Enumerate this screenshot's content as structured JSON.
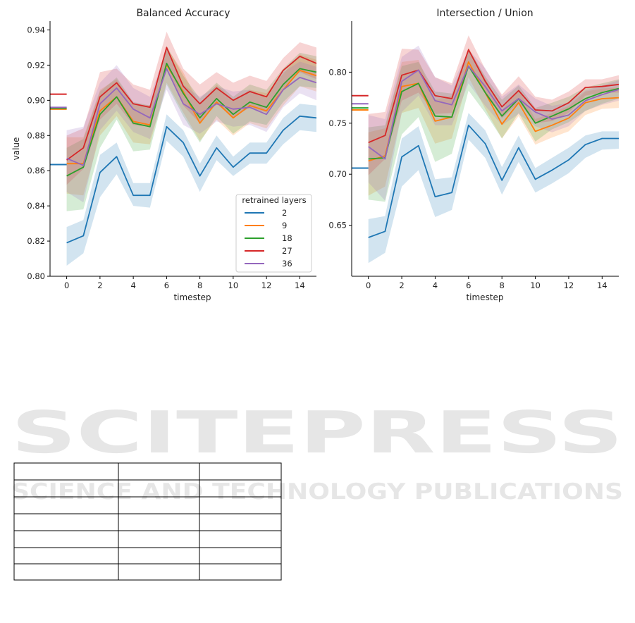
{
  "watermark": {
    "main": "SCITEPRESS",
    "sub": "SCIENCE AND TECHNOLOGY PUBLICATIONS"
  },
  "legend": {
    "title": "retrained layers",
    "entries": [
      {
        "label": "2",
        "color": "#1f77b4"
      },
      {
        "label": "9",
        "color": "#ff7f0e"
      },
      {
        "label": "18",
        "color": "#2ca02c"
      },
      {
        "label": "27",
        "color": "#d62728"
      },
      {
        "label": "36",
        "color": "#9467bd"
      }
    ]
  },
  "chart_data": [
    {
      "type": "line",
      "title": "Balanced Accuracy",
      "xlabel": "timestep",
      "ylabel": "value",
      "xlim": [
        -1,
        15
      ],
      "ylim": [
        0.8,
        0.945
      ],
      "xticks": [
        0,
        2,
        4,
        6,
        8,
        10,
        12,
        14
      ],
      "yticks": [
        0.8,
        0.82,
        0.84,
        0.86,
        0.88,
        0.9,
        0.92,
        0.94
      ],
      "ytick_labels": [
        "0.80",
        "0.82",
        "0.84",
        "0.86",
        "0.88",
        "0.90",
        "0.92",
        "0.94"
      ],
      "x": [
        0,
        1,
        2,
        3,
        4,
        5,
        6,
        7,
        8,
        9,
        10,
        11,
        12,
        13,
        14,
        15
      ],
      "baselines": [
        {
          "name": "2",
          "value": 0.8635
        },
        {
          "name": "9",
          "value": 0.895
        },
        {
          "name": "18",
          "value": 0.8955
        },
        {
          "name": "27",
          "value": 0.9035
        },
        {
          "name": "36",
          "value": 0.896
        }
      ],
      "series": [
        {
          "name": "2",
          "values": [
            0.819,
            0.823,
            0.859,
            0.868,
            0.846,
            0.846,
            0.885,
            0.876,
            0.857,
            0.873,
            0.862,
            0.87,
            0.87,
            0.883,
            0.891,
            0.89
          ],
          "lower": [
            0.806,
            0.813,
            0.845,
            0.858,
            0.84,
            0.839,
            0.877,
            0.868,
            0.848,
            0.866,
            0.857,
            0.864,
            0.864,
            0.875,
            0.883,
            0.882
          ],
          "upper": [
            0.828,
            0.832,
            0.869,
            0.876,
            0.853,
            0.853,
            0.892,
            0.883,
            0.864,
            0.88,
            0.868,
            0.876,
            0.876,
            0.89,
            0.898,
            0.897
          ]
        },
        {
          "name": "9",
          "values": [
            0.864,
            0.864,
            0.894,
            0.902,
            0.888,
            0.886,
            0.92,
            0.905,
            0.887,
            0.899,
            0.89,
            0.897,
            0.894,
            0.906,
            0.917,
            0.914
          ],
          "lower": [
            0.847,
            0.846,
            0.88,
            0.891,
            0.876,
            0.875,
            0.91,
            0.893,
            0.877,
            0.889,
            0.88,
            0.887,
            0.884,
            0.897,
            0.908,
            0.905
          ],
          "upper": [
            0.879,
            0.879,
            0.906,
            0.912,
            0.898,
            0.897,
            0.93,
            0.916,
            0.897,
            0.909,
            0.9,
            0.906,
            0.904,
            0.915,
            0.926,
            0.923
          ]
        },
        {
          "name": "18",
          "values": [
            0.857,
            0.862,
            0.892,
            0.902,
            0.887,
            0.885,
            0.921,
            0.904,
            0.89,
            0.901,
            0.892,
            0.899,
            0.896,
            0.909,
            0.918,
            0.916
          ],
          "lower": [
            0.837,
            0.838,
            0.873,
            0.889,
            0.871,
            0.872,
            0.909,
            0.891,
            0.876,
            0.891,
            0.881,
            0.888,
            0.886,
            0.899,
            0.908,
            0.907
          ],
          "upper": [
            0.873,
            0.878,
            0.905,
            0.913,
            0.899,
            0.897,
            0.931,
            0.914,
            0.901,
            0.91,
            0.902,
            0.909,
            0.906,
            0.918,
            0.927,
            0.925
          ]
        },
        {
          "name": "27",
          "values": [
            0.866,
            0.873,
            0.902,
            0.91,
            0.898,
            0.896,
            0.93,
            0.908,
            0.898,
            0.907,
            0.9,
            0.905,
            0.902,
            0.917,
            0.925,
            0.921
          ],
          "lower": [
            0.852,
            0.861,
            0.889,
            0.898,
            0.886,
            0.885,
            0.92,
            0.897,
            0.887,
            0.898,
            0.89,
            0.896,
            0.893,
            0.907,
            0.916,
            0.912
          ],
          "upper": [
            0.88,
            0.884,
            0.916,
            0.918,
            0.909,
            0.906,
            0.939,
            0.918,
            0.909,
            0.916,
            0.91,
            0.914,
            0.911,
            0.924,
            0.933,
            0.93
          ]
        },
        {
          "name": "36",
          "values": [
            0.867,
            0.863,
            0.898,
            0.907,
            0.895,
            0.89,
            0.918,
            0.898,
            0.892,
            0.898,
            0.895,
            0.896,
            0.892,
            0.906,
            0.913,
            0.91
          ],
          "lower": [
            0.848,
            0.842,
            0.883,
            0.894,
            0.882,
            0.878,
            0.906,
            0.886,
            0.881,
            0.888,
            0.885,
            0.886,
            0.882,
            0.896,
            0.904,
            0.9
          ],
          "upper": [
            0.883,
            0.885,
            0.91,
            0.92,
            0.907,
            0.902,
            0.929,
            0.909,
            0.902,
            0.908,
            0.905,
            0.906,
            0.901,
            0.916,
            0.922,
            0.919
          ]
        }
      ]
    },
    {
      "type": "line",
      "title": "Intersection / Union",
      "xlabel": "timestep",
      "ylabel": "",
      "xlim": [
        -1,
        15
      ],
      "ylim": [
        0.6,
        0.85
      ],
      "xticks": [
        0,
        2,
        4,
        6,
        8,
        10,
        12,
        14
      ],
      "yticks": [
        0.65,
        0.7,
        0.75,
        0.8
      ],
      "ytick_labels": [
        "0.65",
        "0.70",
        "0.75",
        "0.80"
      ],
      "x": [
        0,
        1,
        2,
        3,
        4,
        5,
        6,
        7,
        8,
        9,
        10,
        11,
        12,
        13,
        14,
        15
      ],
      "baselines": [
        {
          "name": "2",
          "value": 0.706
        },
        {
          "name": "9",
          "value": 0.763
        },
        {
          "name": "18",
          "value": 0.765
        },
        {
          "name": "27",
          "value": 0.777
        },
        {
          "name": "36",
          "value": 0.769
        }
      ],
      "series": [
        {
          "name": "2",
          "values": [
            0.638,
            0.644,
            0.717,
            0.728,
            0.678,
            0.682,
            0.748,
            0.73,
            0.694,
            0.726,
            0.695,
            0.704,
            0.714,
            0.729,
            0.735,
            0.735
          ],
          "lower": [
            0.613,
            0.623,
            0.688,
            0.704,
            0.658,
            0.665,
            0.734,
            0.716,
            0.68,
            0.712,
            0.682,
            0.691,
            0.701,
            0.716,
            0.724,
            0.725
          ],
          "upper": [
            0.656,
            0.659,
            0.735,
            0.747,
            0.695,
            0.697,
            0.76,
            0.743,
            0.707,
            0.738,
            0.706,
            0.716,
            0.726,
            0.738,
            0.742,
            0.742
          ]
        },
        {
          "name": "9",
          "values": [
            0.713,
            0.718,
            0.786,
            0.789,
            0.752,
            0.756,
            0.81,
            0.78,
            0.749,
            0.77,
            0.742,
            0.748,
            0.755,
            0.77,
            0.774,
            0.775
          ],
          "lower": [
            0.679,
            0.688,
            0.76,
            0.765,
            0.73,
            0.735,
            0.795,
            0.764,
            0.735,
            0.757,
            0.729,
            0.736,
            0.742,
            0.758,
            0.764,
            0.765
          ],
          "upper": [
            0.741,
            0.745,
            0.81,
            0.812,
            0.773,
            0.777,
            0.824,
            0.794,
            0.763,
            0.783,
            0.754,
            0.76,
            0.767,
            0.781,
            0.784,
            0.785
          ]
        },
        {
          "name": "18",
          "values": [
            0.715,
            0.716,
            0.781,
            0.789,
            0.757,
            0.756,
            0.806,
            0.78,
            0.757,
            0.774,
            0.75,
            0.757,
            0.764,
            0.774,
            0.78,
            0.784
          ],
          "lower": [
            0.675,
            0.673,
            0.739,
            0.756,
            0.712,
            0.72,
            0.782,
            0.76,
            0.735,
            0.76,
            0.732,
            0.744,
            0.751,
            0.762,
            0.769,
            0.774
          ],
          "upper": [
            0.746,
            0.748,
            0.806,
            0.81,
            0.781,
            0.779,
            0.823,
            0.796,
            0.773,
            0.787,
            0.765,
            0.77,
            0.776,
            0.785,
            0.789,
            0.793
          ]
        },
        {
          "name": "27",
          "values": [
            0.731,
            0.738,
            0.797,
            0.802,
            0.777,
            0.774,
            0.822,
            0.791,
            0.766,
            0.782,
            0.763,
            0.762,
            0.77,
            0.785,
            0.786,
            0.788
          ],
          "lower": [
            0.699,
            0.715,
            0.772,
            0.78,
            0.759,
            0.76,
            0.81,
            0.78,
            0.755,
            0.77,
            0.75,
            0.752,
            0.76,
            0.777,
            0.78,
            0.78
          ],
          "upper": [
            0.759,
            0.761,
            0.823,
            0.822,
            0.795,
            0.789,
            0.836,
            0.803,
            0.778,
            0.796,
            0.776,
            0.773,
            0.781,
            0.793,
            0.793,
            0.797
          ]
        },
        {
          "name": "36",
          "values": [
            0.727,
            0.715,
            0.791,
            0.802,
            0.772,
            0.768,
            0.806,
            0.786,
            0.762,
            0.774,
            0.761,
            0.754,
            0.758,
            0.772,
            0.778,
            0.783
          ],
          "lower": [
            0.692,
            0.674,
            0.761,
            0.777,
            0.748,
            0.748,
            0.789,
            0.767,
            0.748,
            0.759,
            0.747,
            0.741,
            0.747,
            0.762,
            0.768,
            0.772
          ],
          "upper": [
            0.758,
            0.754,
            0.815,
            0.826,
            0.795,
            0.787,
            0.822,
            0.804,
            0.776,
            0.788,
            0.774,
            0.767,
            0.77,
            0.782,
            0.787,
            0.792
          ]
        }
      ]
    }
  ]
}
